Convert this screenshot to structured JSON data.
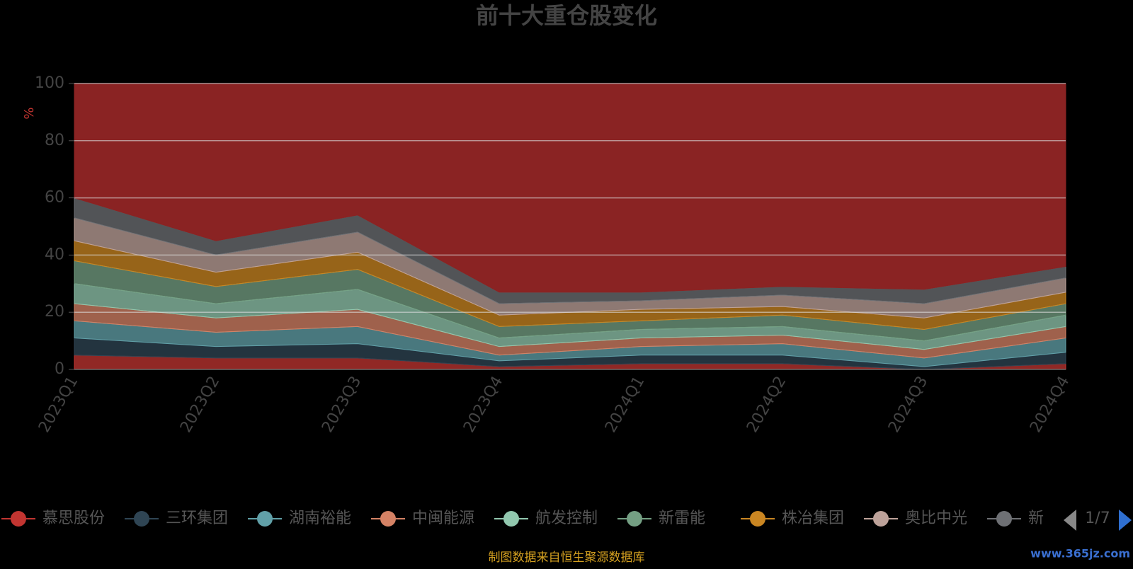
{
  "chart_data": {
    "type": "stacked-area",
    "title": "前十大重仓股变化",
    "y_label": "%",
    "categories": [
      "2023Q1",
      "2023Q2",
      "2023Q3",
      "2023Q4",
      "2024Q1",
      "2024Q2",
      "2024Q3",
      "2024Q4"
    ],
    "series": [
      {
        "name": "慕思股份",
        "color": "#c23531",
        "values": [
          5,
          4,
          4,
          1,
          2,
          2,
          0,
          2
        ]
      },
      {
        "name": "三环集团",
        "color": "#2f4554",
        "values": [
          6,
          4,
          5,
          2,
          3,
          3,
          1,
          4
        ]
      },
      {
        "name": "湖南裕能",
        "color": "#61a0a8",
        "values": [
          6,
          5,
          6,
          2,
          3,
          4,
          3,
          5
        ]
      },
      {
        "name": "中闽能源",
        "color": "#d48265",
        "values": [
          6,
          5,
          6,
          3,
          3,
          3,
          3,
          4
        ]
      },
      {
        "name": "航发控制",
        "color": "#91c7ae",
        "values": [
          7,
          5,
          7,
          3,
          3,
          3,
          3,
          4
        ]
      },
      {
        "name": "新雷能",
        "color": "#749f83",
        "values": [
          8,
          6,
          7,
          4,
          3,
          4,
          4,
          4
        ]
      },
      {
        "name": "株冶集团",
        "color": "#ca8622",
        "values": [
          7,
          5,
          6,
          4,
          4,
          3,
          4,
          4
        ]
      },
      {
        "name": "奥比中光",
        "color": "#bda29a",
        "values": [
          8,
          6,
          7,
          4,
          3,
          4,
          5,
          5
        ]
      },
      {
        "name": "新",
        "color": "#6e7074",
        "values": [
          7,
          5,
          6,
          4,
          3,
          3,
          5,
          4
        ]
      },
      {
        "color": "#8a2323",
        "values": [
          40,
          55,
          46,
          73,
          73,
          71,
          72,
          64
        ]
      }
    ],
    "ylim": [
      0,
      100
    ],
    "yticks": [
      0,
      20,
      40,
      60,
      80,
      100
    ],
    "grid": true,
    "legend_page": "1/7",
    "source": "制图数据来自恒生聚源数据库",
    "watermark": "www.365jz.com"
  }
}
